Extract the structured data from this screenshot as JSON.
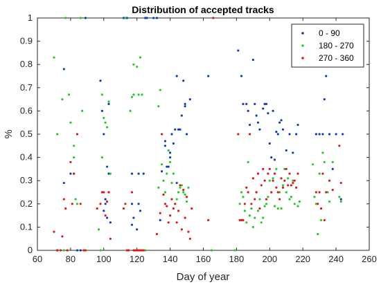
{
  "chart_data": {
    "type": "scatter",
    "title": "Distribution of accepted tracks",
    "xlabel": "Day of year",
    "ylabel": "%",
    "xlim": [
      60,
      260
    ],
    "ylim": [
      0,
      1
    ],
    "xticks": [
      "60",
      "80",
      "100",
      "120",
      "140",
      "160",
      "180",
      "200",
      "220",
      "240",
      "260"
    ],
    "yticks": [
      "0",
      "0.1",
      "0.2",
      "0.3",
      "0.4",
      "0.5",
      "0.6",
      "0.7",
      "0.8",
      "0.9",
      "1"
    ],
    "grid": false,
    "legend_position": "top-right",
    "series": [
      {
        "name": "0 - 90",
        "color": "#0b3fc0",
        "points": [
          [
            72,
            0
          ],
          [
            76,
            0.78
          ],
          [
            76,
            0.29
          ],
          [
            80,
            0.33
          ],
          [
            82,
            0.33
          ],
          [
            84,
            0
          ],
          [
            86,
            0
          ],
          [
            89,
            1
          ],
          [
            98,
            0.73
          ],
          [
            99,
            0.6
          ],
          [
            100,
            0.5
          ],
          [
            100,
            0.17
          ],
          [
            101,
            0.2
          ],
          [
            101,
            0.22
          ],
          [
            102,
            0.36
          ],
          [
            102,
            0.14
          ],
          [
            103,
            0.33
          ],
          [
            103,
            0.63
          ],
          [
            104,
            0.12
          ],
          [
            112,
            1
          ],
          [
            114,
            1
          ],
          [
            117,
            0.33
          ],
          [
            117,
            0.2
          ],
          [
            117,
            0.11
          ],
          [
            118,
            0.14
          ],
          [
            120,
            0.09
          ],
          [
            121,
            0.2
          ],
          [
            121,
            0.33
          ],
          [
            122,
            0.17
          ],
          [
            124,
            0.33
          ],
          [
            125,
            1
          ],
          [
            126,
            1
          ],
          [
            130,
            1
          ],
          [
            132,
            1
          ],
          [
            134,
            0.13
          ],
          [
            135,
            0.34
          ],
          [
            137,
            0.47
          ],
          [
            137,
            0.45
          ],
          [
            138,
            0.36
          ],
          [
            139,
            0.36
          ],
          [
            140,
            0.42
          ],
          [
            140,
            0.4
          ],
          [
            141,
            0.5
          ],
          [
            142,
            0.46
          ],
          [
            143,
            0.52
          ],
          [
            144,
            0.75
          ],
          [
            144,
            0.29
          ],
          [
            145,
            0.52
          ],
          [
            146,
            0.52
          ],
          [
            147,
            0.58
          ],
          [
            148,
            0.73
          ],
          [
            149,
            0.63
          ],
          [
            149,
            0.62
          ],
          [
            150,
            0.5
          ],
          [
            152,
            0.65
          ],
          [
            163,
            0.75
          ],
          [
            181,
            0.86
          ],
          [
            183,
            0.75
          ],
          [
            184,
            0.63
          ],
          [
            186,
            0.63
          ],
          [
            187,
            0.6
          ],
          [
            188,
            0.54
          ],
          [
            190,
            0.82
          ],
          [
            191,
            0.63
          ],
          [
            192,
            0.58
          ],
          [
            193,
            0.55
          ],
          [
            194,
            0.52
          ],
          [
            196,
            0.61
          ],
          [
            197,
            0.63
          ],
          [
            198,
            0.63
          ],
          [
            199,
            0.59
          ],
          [
            200,
            0.46
          ],
          [
            201,
            0.4
          ],
          [
            202,
            0.6
          ],
          [
            203,
            0.39
          ],
          [
            204,
            0.51
          ],
          [
            205,
            0.5
          ],
          [
            206,
            0.55
          ],
          [
            207,
            0.56
          ],
          [
            208,
            0.52
          ],
          [
            210,
            0.43
          ],
          [
            212,
            0.5
          ],
          [
            214,
            0.42
          ],
          [
            216,
            0.5
          ],
          [
            217,
            0.54
          ],
          [
            228,
            0.5
          ],
          [
            230,
            0.5
          ],
          [
            232,
            0.5
          ],
          [
            233,
            0.65
          ],
          [
            234,
            0.75
          ],
          [
            236,
            0.5
          ],
          [
            238,
            0.35
          ],
          [
            240,
            0.5
          ],
          [
            243,
            0.22
          ],
          [
            244,
            0.5
          ]
        ]
      },
      {
        "name": "180 - 270",
        "color": "#22cc22",
        "points": [
          [
            70,
            0.83
          ],
          [
            72,
            0.5
          ],
          [
            75,
            0.65
          ],
          [
            76,
            0
          ],
          [
            77,
            1
          ],
          [
            79,
            0.67
          ],
          [
            80,
            0.55
          ],
          [
            82,
            0.45
          ],
          [
            82,
            0.4
          ],
          [
            83,
            0.22
          ],
          [
            84,
            0.2
          ],
          [
            86,
            1
          ],
          [
            87,
            0.6
          ],
          [
            97,
            0.09
          ],
          [
            98,
            0
          ],
          [
            99,
            0.67
          ],
          [
            99,
            0.4
          ],
          [
            100,
            0.57
          ],
          [
            101,
            0.55
          ],
          [
            102,
            0.53
          ],
          [
            103,
            0.64
          ],
          [
            104,
            0.33
          ],
          [
            113,
            1
          ],
          [
            116,
            0.6
          ],
          [
            117,
            0.66
          ],
          [
            118,
            0.67
          ],
          [
            118,
            0.8
          ],
          [
            120,
            0.79
          ],
          [
            121,
            0.67
          ],
          [
            122,
            0.83
          ],
          [
            123,
            0.67
          ],
          [
            125,
            0
          ],
          [
            133,
            0.27
          ],
          [
            133,
            0.62
          ],
          [
            134,
            0.69
          ],
          [
            135,
            0.37
          ],
          [
            136,
            0.3
          ],
          [
            137,
            0.25
          ],
          [
            138,
            0.33
          ],
          [
            139,
            0.43
          ],
          [
            140,
            0.38
          ],
          [
            141,
            0.29
          ],
          [
            142,
            0.33
          ],
          [
            143,
            0.2
          ],
          [
            144,
            0.22
          ],
          [
            145,
            0.25
          ],
          [
            146,
            0.27
          ],
          [
            147,
            0.28
          ],
          [
            148,
            0.25
          ],
          [
            149,
            0.24
          ],
          [
            150,
            0.21
          ],
          [
            151,
            0.27
          ],
          [
            165,
            0
          ],
          [
            179,
            0
          ],
          [
            182,
            0.2
          ],
          [
            183,
            0.25
          ],
          [
            184,
            0.23
          ],
          [
            185,
            0.17
          ],
          [
            186,
            0.12
          ],
          [
            187,
            0.38
          ],
          [
            188,
            0.15
          ],
          [
            189,
            0.18
          ],
          [
            190,
            0.1
          ],
          [
            191,
            0.14
          ],
          [
            192,
            0.25
          ],
          [
            193,
            0.17
          ],
          [
            194,
            0.22
          ],
          [
            195,
            0.12
          ],
          [
            196,
            0.14
          ],
          [
            197,
            0.19
          ],
          [
            198,
            0.2
          ],
          [
            199,
            0.23
          ],
          [
            200,
            0.3
          ],
          [
            201,
            0.25
          ],
          [
            202,
            0.31
          ],
          [
            203,
            0.19
          ],
          [
            204,
            0.35
          ],
          [
            205,
            0.18
          ],
          [
            206,
            0.25
          ],
          [
            207,
            0.18
          ],
          [
            208,
            0.28
          ],
          [
            209,
            0.35
          ],
          [
            210,
            0.25
          ],
          [
            211,
            0.31
          ],
          [
            212,
            0.22
          ],
          [
            213,
            0.23
          ],
          [
            214,
            0.3
          ],
          [
            215,
            0.2
          ],
          [
            217,
            0.19
          ],
          [
            218,
            0.21
          ],
          [
            226,
            0.37
          ],
          [
            227,
            0.23
          ],
          [
            228,
            0.2
          ],
          [
            229,
            0.07
          ],
          [
            230,
            0.33
          ],
          [
            231,
            0.13
          ],
          [
            232,
            0.42
          ],
          [
            233,
            0.38
          ],
          [
            235,
            0.25
          ],
          [
            236,
            0.21
          ],
          [
            238,
            0.38
          ],
          [
            242,
            0.23
          ],
          [
            243,
            0.21
          ]
        ]
      },
      {
        "name": "270 - 360",
        "color": "#e01818",
        "points": [
          [
            70,
            0.08
          ],
          [
            72,
            0
          ],
          [
            74,
            0
          ],
          [
            75,
            0.06
          ],
          [
            76,
            0.22
          ],
          [
            77,
            0.18
          ],
          [
            78,
            0
          ],
          [
            80,
            0.38
          ],
          [
            81,
            0.2
          ],
          [
            82,
            0.33
          ],
          [
            84,
            0.5
          ],
          [
            86,
            0.2
          ],
          [
            88,
            0
          ],
          [
            89,
            0
          ],
          [
            96,
            0.18
          ],
          [
            98,
            0.2
          ],
          [
            99,
            0.25
          ],
          [
            100,
            0.25
          ],
          [
            101,
            0.15
          ],
          [
            102,
            0.21
          ],
          [
            103,
            0.25
          ],
          [
            103,
            0.25
          ],
          [
            104,
            0.05
          ],
          [
            112,
            0.18
          ],
          [
            113,
            0.2
          ],
          [
            114,
            0
          ],
          [
            115,
            0
          ],
          [
            117,
            0.25
          ],
          [
            118,
            0
          ],
          [
            119,
            0
          ],
          [
            120,
            0
          ],
          [
            121,
            0
          ],
          [
            122,
            0
          ],
          [
            123,
            0
          ],
          [
            124,
            0
          ],
          [
            132,
            0.07
          ],
          [
            134,
            0.16
          ],
          [
            135,
            0.5
          ],
          [
            136,
            0.24
          ],
          [
            137,
            0.2
          ],
          [
            138,
            0.19
          ],
          [
            139,
            0.12
          ],
          [
            140,
            0.15
          ],
          [
            141,
            0.22
          ],
          [
            142,
            0.18
          ],
          [
            143,
            0.2
          ],
          [
            144,
            0.12
          ],
          [
            145,
            0.17
          ],
          [
            146,
            0.28
          ],
          [
            147,
            0.09
          ],
          [
            148,
            0.26
          ],
          [
            149,
            0.14
          ],
          [
            150,
            0.23
          ],
          [
            151,
            0.08
          ],
          [
            152,
            0.05
          ],
          [
            153,
            0.18
          ],
          [
            163,
            0.13
          ],
          [
            166,
            1
          ],
          [
            181,
            0.5
          ],
          [
            182,
            0.13
          ],
          [
            183,
            0.13
          ],
          [
            184,
            0.13
          ],
          [
            185,
            0.2
          ],
          [
            186,
            0.27
          ],
          [
            187,
            0.25
          ],
          [
            188,
            0.5
          ],
          [
            189,
            0.2
          ],
          [
            190,
            0.31
          ],
          [
            191,
            0.22
          ],
          [
            192,
            0.25
          ],
          [
            193,
            0.33
          ],
          [
            194,
            0.18
          ],
          [
            195,
            0.28
          ],
          [
            196,
            0.35
          ],
          [
            197,
            0.3
          ],
          [
            198,
            0.22
          ],
          [
            199,
            0.33
          ],
          [
            200,
            0.35
          ],
          [
            201,
            0.25
          ],
          [
            202,
            0.3
          ],
          [
            203,
            0.33
          ],
          [
            204,
            0.27
          ],
          [
            205,
            0.25
          ],
          [
            206,
            0.22
          ],
          [
            207,
            0.31
          ],
          [
            208,
            0.27
          ],
          [
            209,
            0.3
          ],
          [
            210,
            0.35
          ],
          [
            211,
            0.28
          ],
          [
            212,
            0.33
          ],
          [
            213,
            0.28
          ],
          [
            214,
            0.29
          ],
          [
            215,
            0.3
          ],
          [
            216,
            0.27
          ],
          [
            217,
            0.33
          ],
          [
            228,
            0.25
          ],
          [
            229,
            0.2
          ],
          [
            230,
            0.25
          ],
          [
            231,
            0.18
          ],
          [
            232,
            0.33
          ],
          [
            233,
            0.13
          ],
          [
            234,
            0.25
          ],
          [
            236,
            0.3
          ],
          [
            238,
            0.26
          ],
          [
            242,
            0.45
          ],
          [
            243,
            0.29
          ]
        ]
      }
    ]
  }
}
